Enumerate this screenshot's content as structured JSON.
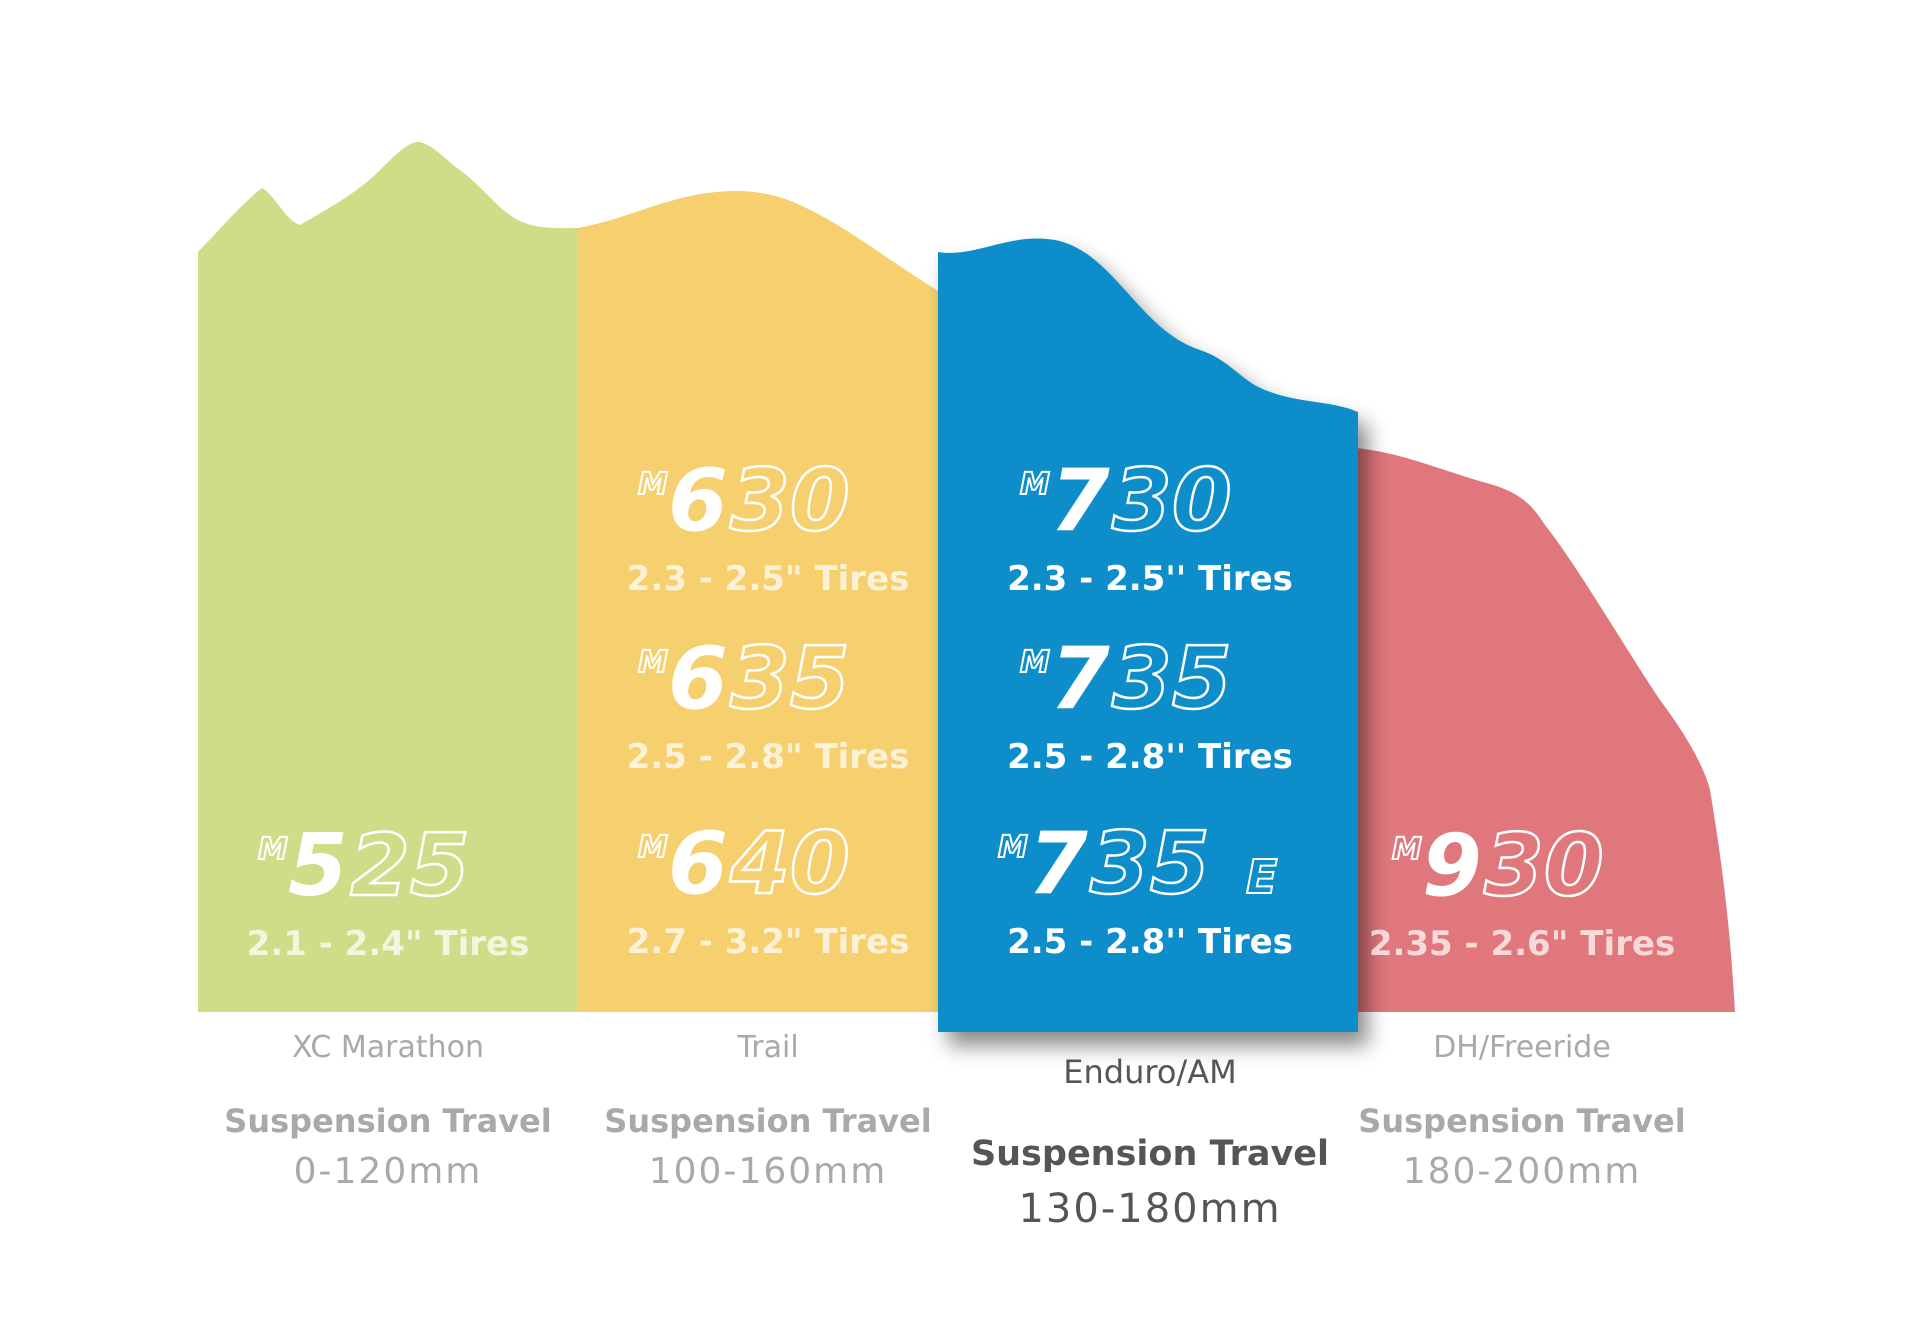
{
  "colors": {
    "xc": "#cddd88",
    "trail": "#f6cf6f",
    "enduro": "#0b8ecb",
    "dh": "#e0777c",
    "text_dim": "#a9a9a9",
    "text_strong": "#555555"
  },
  "categories": [
    {
      "id": "xc",
      "label": "XC Marathon",
      "travel_title": "Suspension Travel",
      "travel_range": "0-120mm",
      "models": [
        {
          "prefix": "M",
          "digit": "5",
          "rest": "25",
          "suffix": "",
          "tires": "2.1 - 2.4\" Tires"
        }
      ]
    },
    {
      "id": "trail",
      "label": "Trail",
      "travel_title": "Suspension Travel",
      "travel_range": "100-160mm",
      "models": [
        {
          "prefix": "M",
          "digit": "6",
          "rest": "30",
          "suffix": "",
          "tires": "2.3 - 2.5\" Tires"
        },
        {
          "prefix": "M",
          "digit": "6",
          "rest": "35",
          "suffix": "",
          "tires": "2.5 - 2.8\" Tires"
        },
        {
          "prefix": "M",
          "digit": "6",
          "rest": "40",
          "suffix": "",
          "tires": "2.7 - 3.2\" Tires"
        }
      ]
    },
    {
      "id": "enduro",
      "label": "Enduro/AM",
      "travel_title": "Suspension Travel",
      "travel_range": "130-180mm",
      "models": [
        {
          "prefix": "M",
          "digit": "7",
          "rest": "30",
          "suffix": "",
          "tires": "2.3 - 2.5'' Tires"
        },
        {
          "prefix": "M",
          "digit": "7",
          "rest": "35",
          "suffix": "",
          "tires": "2.5 - 2.8'' Tires"
        },
        {
          "prefix": "M",
          "digit": "7",
          "rest": "35",
          "suffix": "E",
          "tires": "2.5 - 2.8'' Tires"
        }
      ]
    },
    {
      "id": "dh",
      "label": "DH/Freeride",
      "travel_title": "Suspension Travel",
      "travel_range": "180-200mm",
      "models": [
        {
          "prefix": "M",
          "digit": "9",
          "rest": "30",
          "suffix": "",
          "tires": "2.35 - 2.6\" Tires"
        }
      ]
    }
  ]
}
